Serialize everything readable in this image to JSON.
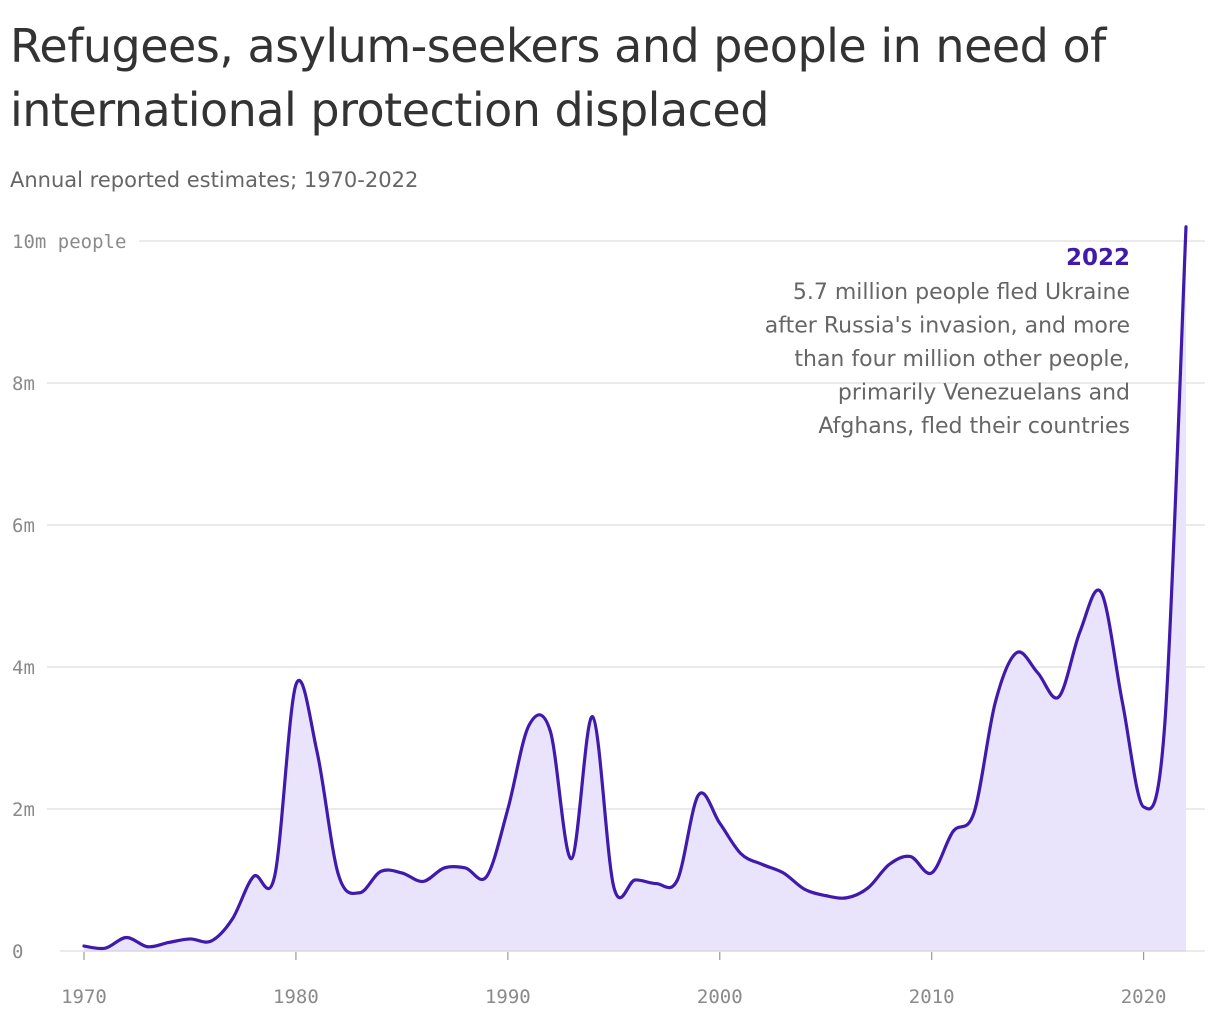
{
  "title": "Refugees, asylum-seekers and people in need of international protection displaced",
  "subtitle": "Annual reported estimates; 1970-2022",
  "colors": {
    "line": "#3f1aad",
    "area": "#e9e4fc",
    "grid": "#dddddd",
    "annotation_year": "#3f1aad"
  },
  "chart_data": {
    "type": "area",
    "title": "Refugees, asylum-seekers and people in need of international protection displaced",
    "subtitle": "Annual reported estimates; 1970-2022",
    "xlabel": "",
    "ylabel": "",
    "x": [
      1970,
      1971,
      1972,
      1973,
      1974,
      1975,
      1976,
      1977,
      1978,
      1979,
      1980,
      1981,
      1982,
      1983,
      1984,
      1985,
      1986,
      1987,
      1988,
      1989,
      1990,
      1991,
      1992,
      1993,
      1994,
      1995,
      1996,
      1997,
      1998,
      1999,
      2000,
      2001,
      2002,
      2003,
      2004,
      2005,
      2006,
      2007,
      2008,
      2009,
      2010,
      2011,
      2012,
      2013,
      2014,
      2015,
      2016,
      2017,
      2018,
      2019,
      2020,
      2021,
      2022
    ],
    "series": [
      {
        "values": [
          0.07,
          0.04,
          0.19,
          0.06,
          0.12,
          0.17,
          0.14,
          0.45,
          1.05,
          1.06,
          3.75,
          2.8,
          1.08,
          0.82,
          1.12,
          1.1,
          0.98,
          1.17,
          1.17,
          1.05,
          2.0,
          3.18,
          3.1,
          1.3,
          3.3,
          0.9,
          1.0,
          0.95,
          1.0,
          2.2,
          1.8,
          1.37,
          1.22,
          1.1,
          0.87,
          0.78,
          0.75,
          0.89,
          1.22,
          1.33,
          1.1,
          1.68,
          1.95,
          3.5,
          4.2,
          3.92,
          3.58,
          4.5,
          5.05,
          3.5,
          2.03,
          3.2,
          10.2
        ]
      }
    ],
    "xlim": [
      1970,
      2022
    ],
    "ylim": [
      0,
      10
    ],
    "x_ticks": [
      1970,
      1980,
      1990,
      2000,
      2010,
      2020
    ],
    "x_tick_labels": [
      "1970",
      "1980",
      "1990",
      "2000",
      "2010",
      "2020"
    ],
    "y_ticks": [
      0,
      2,
      4,
      6,
      8,
      10
    ],
    "y_tick_labels": [
      "0",
      "2m",
      "4m",
      "6m",
      "8m",
      "10m people"
    ],
    "grid": true,
    "annotation": {
      "year": "2022",
      "lines": [
        "5.7 million people fled Ukraine",
        "after Russia's invasion, and more",
        "than four million other people,",
        "primarily Venezuelans and",
        "Afghans, fled their countries"
      ]
    }
  }
}
